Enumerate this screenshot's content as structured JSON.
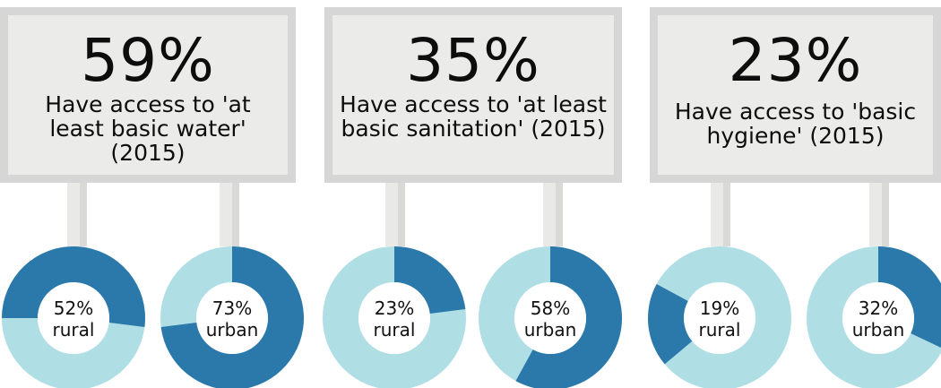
{
  "headline_cards": [
    {
      "value": "59%",
      "text": "Have access to 'at least basic water' (2015)"
    },
    {
      "value": "35%",
      "text": "Have access to 'at least basic sanitation' (2015)"
    },
    {
      "value": "23%",
      "text": "Have access to 'basic hygiene' (2015)"
    }
  ],
  "colors": {
    "share": "#2b78aa",
    "remainder": "#b0dee5",
    "card_bg": "#ebebea",
    "card_border": "#d6d6d6"
  },
  "chart_data": {
    "type": "pie",
    "style": "donut",
    "charts": [
      {
        "group": "at least basic water",
        "label_value": "52%",
        "label_area": "rural",
        "value": 52
      },
      {
        "group": "at least basic water",
        "label_value": "73%",
        "label_area": "urban",
        "value": 73
      },
      {
        "group": "at least basic sanitation",
        "label_value": "23%",
        "label_area": "rural",
        "value": 23
      },
      {
        "group": "at least basic sanitation",
        "label_value": "58%",
        "label_area": "urban",
        "value": 58
      },
      {
        "group": "basic hygiene",
        "label_value": "19%",
        "label_area": "rural",
        "value": 19
      },
      {
        "group": "basic hygiene",
        "label_value": "32%",
        "label_area": "urban",
        "value": 32
      }
    ]
  }
}
